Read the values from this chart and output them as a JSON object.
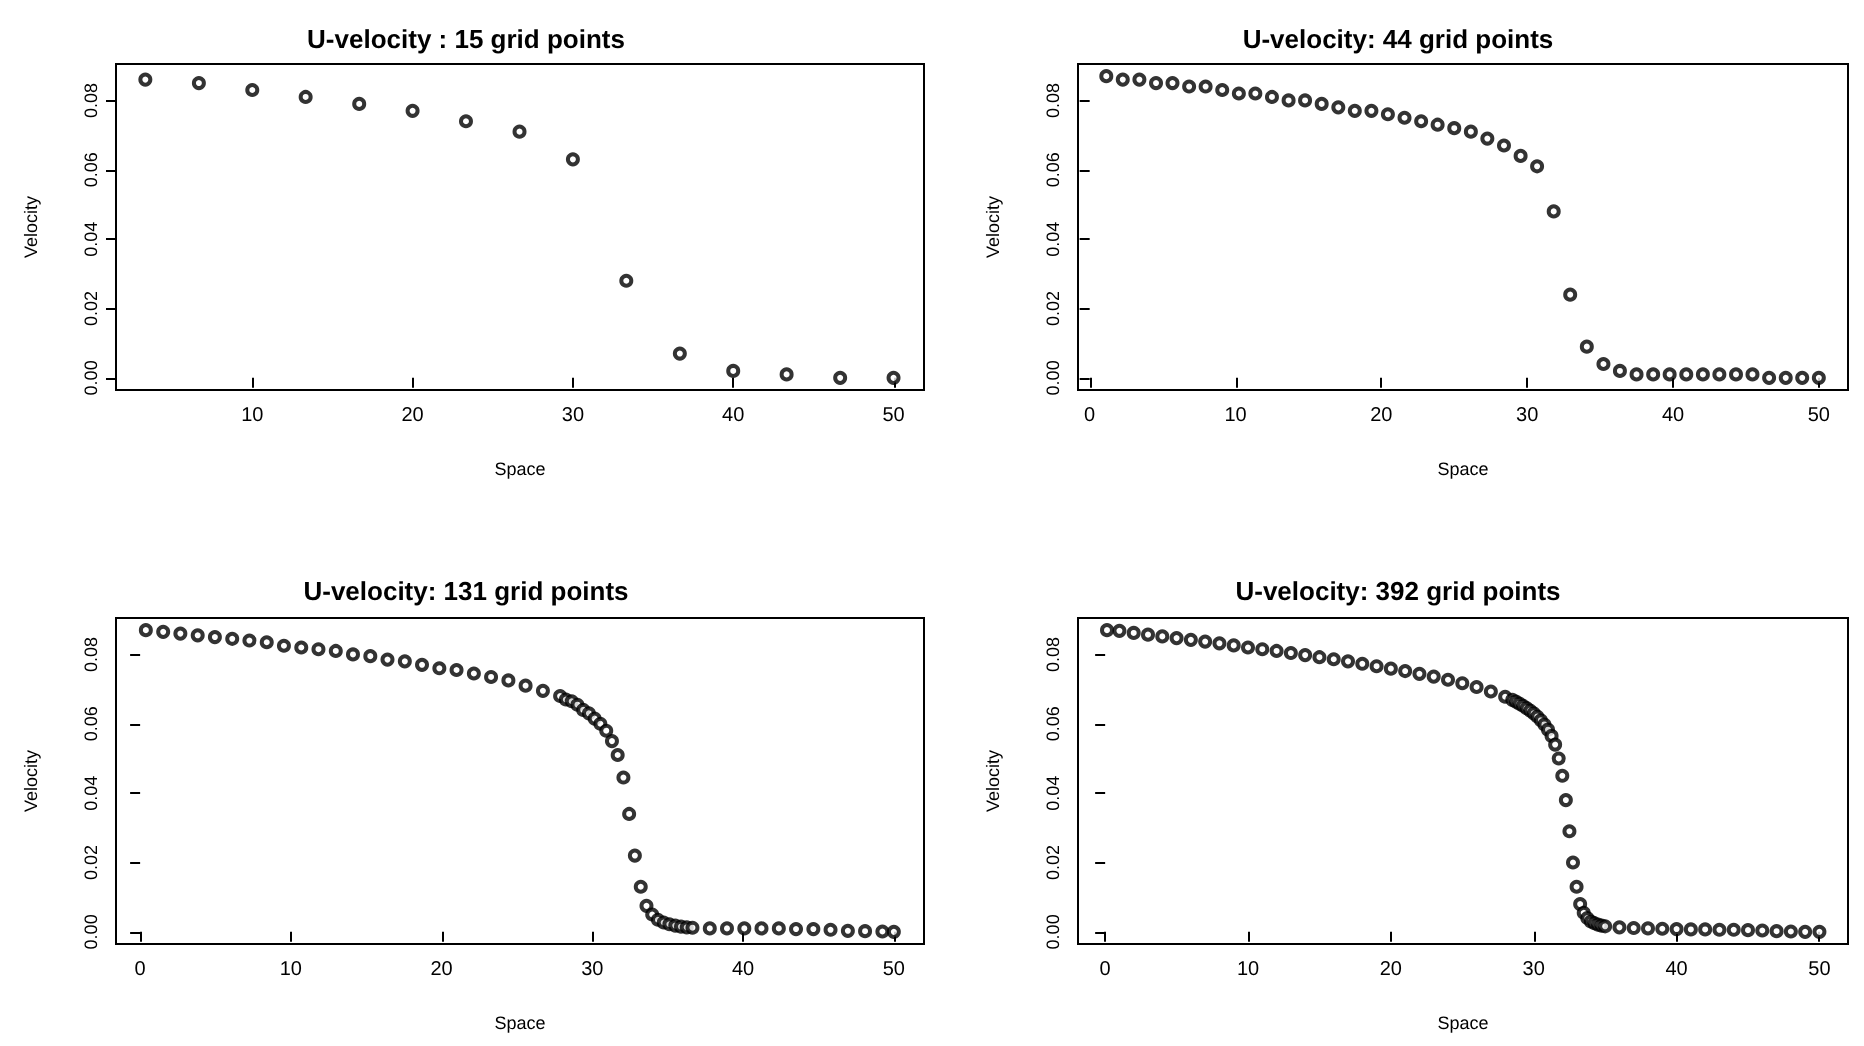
{
  "chart_data": [
    {
      "type": "scatter",
      "title": "U-velocity : 15 grid points",
      "xlabel": "Space",
      "ylabel": "Velocity",
      "marker": "circle",
      "xlim": [
        1.5,
        51.9
      ],
      "xticks": [
        10,
        20,
        30,
        40,
        50
      ],
      "ylim": [
        -0.0035,
        0.0905
      ],
      "yticks": [
        {
          "value": 0,
          "label": "0.00"
        },
        {
          "value": 0.02,
          "label": "0.02"
        },
        {
          "value": 0.04,
          "label": "0.04"
        },
        {
          "value": 0.06,
          "label": "0.06"
        },
        {
          "value": 0.08,
          "label": "0.08"
        }
      ],
      "series": [
        {
          "color": "#000000",
          "x": [
            3.33,
            6.67,
            10,
            13.33,
            16.67,
            20,
            23.33,
            26.67,
            30,
            33.33,
            36.67,
            40,
            43.33,
            46.67,
            50
          ],
          "values": [
            0.086,
            0.085,
            0.083,
            0.081,
            0.079,
            0.077,
            0.074,
            0.071,
            0.063,
            0.028,
            0.007,
            0.002,
            0.001,
            0,
            0
          ]
        }
      ]
    },
    {
      "type": "scatter",
      "title": "U-velocity: 44 grid points",
      "xlabel": "Space",
      "ylabel": "Velocity",
      "marker": "circle",
      "xlim": [
        -0.8,
        52
      ],
      "xticks": [
        0,
        10,
        20,
        30,
        40,
        50
      ],
      "ylim": [
        -0.0035,
        0.0905
      ],
      "yticks": [
        {
          "value": 0,
          "label": "0.00"
        },
        {
          "value": 0.02,
          "label": "0.02"
        },
        {
          "value": 0.04,
          "label": "0.04"
        },
        {
          "value": 0.06,
          "label": "0.06"
        },
        {
          "value": 0.08,
          "label": "0.08"
        }
      ],
      "series": [
        {
          "color": "#000000",
          "x": [
            1.14,
            2.27,
            3.41,
            4.55,
            5.68,
            6.82,
            7.95,
            9.09,
            10.23,
            11.36,
            12.5,
            13.64,
            14.77,
            15.91,
            17.05,
            18.18,
            19.32,
            20.45,
            21.59,
            22.73,
            23.86,
            25,
            26.14,
            27.27,
            28.41,
            29.55,
            30.68,
            31.82,
            32.95,
            34.09,
            35.23,
            36.36,
            37.5,
            38.64,
            39.77,
            40.91,
            42.05,
            43.18,
            44.32,
            45.45,
            46.59,
            47.73,
            48.86,
            50
          ],
          "values": [
            0.087,
            0.086,
            0.086,
            0.085,
            0.085,
            0.084,
            0.084,
            0.083,
            0.082,
            0.082,
            0.081,
            0.08,
            0.08,
            0.079,
            0.078,
            0.077,
            0.077,
            0.076,
            0.075,
            0.074,
            0.073,
            0.072,
            0.071,
            0.069,
            0.067,
            0.064,
            0.061,
            0.048,
            0.024,
            0.009,
            0.004,
            0.002,
            0.001,
            0.001,
            0.001,
            0.001,
            0.001,
            0.001,
            0.001,
            0.001,
            0,
            0,
            0,
            0
          ]
        }
      ]
    },
    {
      "type": "scatter",
      "title": "U-velocity: 131 grid points",
      "xlabel": "Space",
      "ylabel": "Velocity",
      "marker": "circle",
      "xlim": [
        -1.6,
        52
      ],
      "xticks": [
        0,
        10,
        20,
        30,
        40,
        50
      ],
      "ylim": [
        -0.0035,
        0.0905
      ],
      "yticks": [
        {
          "value": 0,
          "label": "0.00"
        },
        {
          "value": 0.02,
          "label": "0.02"
        },
        {
          "value": 0.04,
          "label": "0.04"
        },
        {
          "value": 0.06,
          "label": "0.06"
        },
        {
          "value": 0.08,
          "label": "0.08"
        }
      ],
      "series": [
        {
          "color": "#000000",
          "x": [
            0.38,
            1.53,
            2.67,
            3.82,
            4.96,
            6.11,
            7.25,
            8.4,
            9.54,
            10.69,
            11.83,
            12.98,
            14.12,
            15.27,
            16.41,
            17.56,
            18.7,
            19.85,
            20.99,
            22.14,
            23.28,
            24.43,
            25.57,
            26.72,
            27.86,
            28.24,
            28.63,
            29.01,
            29.39,
            29.77,
            30.15,
            30.53,
            30.92,
            31.3,
            31.68,
            32.06,
            32.44,
            32.82,
            33.21,
            33.59,
            33.97,
            34.35,
            34.73,
            35.11,
            35.5,
            35.88,
            36.26,
            36.64,
            37.79,
            38.93,
            40.08,
            41.22,
            42.37,
            43.51,
            44.66,
            45.8,
            46.95,
            48.09,
            49.24,
            50
          ],
          "values": [
            0.087,
            0.0865,
            0.086,
            0.0855,
            0.085,
            0.0845,
            0.084,
            0.0835,
            0.0825,
            0.082,
            0.0815,
            0.081,
            0.08,
            0.0795,
            0.0785,
            0.078,
            0.077,
            0.076,
            0.0755,
            0.0745,
            0.0735,
            0.0725,
            0.071,
            0.0695,
            0.068,
            0.067,
            0.0665,
            0.0655,
            0.064,
            0.063,
            0.0615,
            0.06,
            0.058,
            0.055,
            0.051,
            0.0445,
            0.034,
            0.022,
            0.013,
            0.0075,
            0.005,
            0.0035,
            0.0027,
            0.0022,
            0.0018,
            0.0015,
            0.0013,
            0.0012,
            0.001,
            0.001,
            0.001,
            0.001,
            0.001,
            0.0008,
            0.0008,
            0.0006,
            0.0003,
            0.0002,
            0.0001,
            0
          ]
        }
      ]
    },
    {
      "type": "scatter",
      "title": "U-velocity: 392 grid points",
      "xlabel": "Space",
      "ylabel": "Velocity",
      "marker": "circle",
      "xlim": [
        -1.9,
        52
      ],
      "xticks": [
        0,
        10,
        20,
        30,
        40,
        50
      ],
      "ylim": [
        -0.0035,
        0.0905
      ],
      "yticks": [
        {
          "value": 0,
          "label": "0.00"
        },
        {
          "value": 0.02,
          "label": "0.02"
        },
        {
          "value": 0.04,
          "label": "0.04"
        },
        {
          "value": 0.06,
          "label": "0.06"
        },
        {
          "value": 0.08,
          "label": "0.08"
        }
      ],
      "series": [
        {
          "color": "#000000",
          "x": [
            0.13,
            1,
            2,
            3,
            4,
            5,
            6,
            7,
            8,
            9,
            10,
            11,
            12,
            13,
            14,
            15,
            16,
            17,
            18,
            19,
            20,
            21,
            22,
            23,
            24,
            25,
            26,
            27,
            28,
            28.5,
            28.75,
            29,
            29.25,
            29.5,
            29.75,
            30,
            30.25,
            30.5,
            30.75,
            31,
            31.25,
            31.5,
            31.75,
            32,
            32.25,
            32.5,
            32.75,
            33,
            33.25,
            33.5,
            33.75,
            34,
            34.25,
            34.5,
            34.75,
            35,
            36,
            37,
            38,
            39,
            40,
            41,
            42,
            43,
            44,
            45,
            46,
            47,
            48,
            49,
            50
          ],
          "values": [
            0.087,
            0.0868,
            0.0862,
            0.0857,
            0.0852,
            0.0847,
            0.0842,
            0.0837,
            0.0832,
            0.0826,
            0.082,
            0.0815,
            0.081,
            0.0804,
            0.0798,
            0.0792,
            0.0786,
            0.078,
            0.0773,
            0.0766,
            0.0759,
            0.0752,
            0.0744,
            0.0736,
            0.0727,
            0.0717,
            0.0706,
            0.0693,
            0.0678,
            0.0669,
            0.0664,
            0.0658,
            0.0652,
            0.0645,
            0.0638,
            0.063,
            0.0621,
            0.061,
            0.0598,
            0.0583,
            0.0565,
            0.054,
            0.05,
            0.045,
            0.038,
            0.029,
            0.02,
            0.013,
            0.008,
            0.0055,
            0.004,
            0.003,
            0.0025,
            0.0021,
            0.0018,
            0.0016,
            0.0013,
            0.0011,
            0.001,
            0.0009,
            0.0008,
            0.0007,
            0.0007,
            0.0006,
            0.0006,
            0.0005,
            0.0004,
            0.0002,
            0.0001,
            0,
            0
          ]
        }
      ]
    }
  ]
}
